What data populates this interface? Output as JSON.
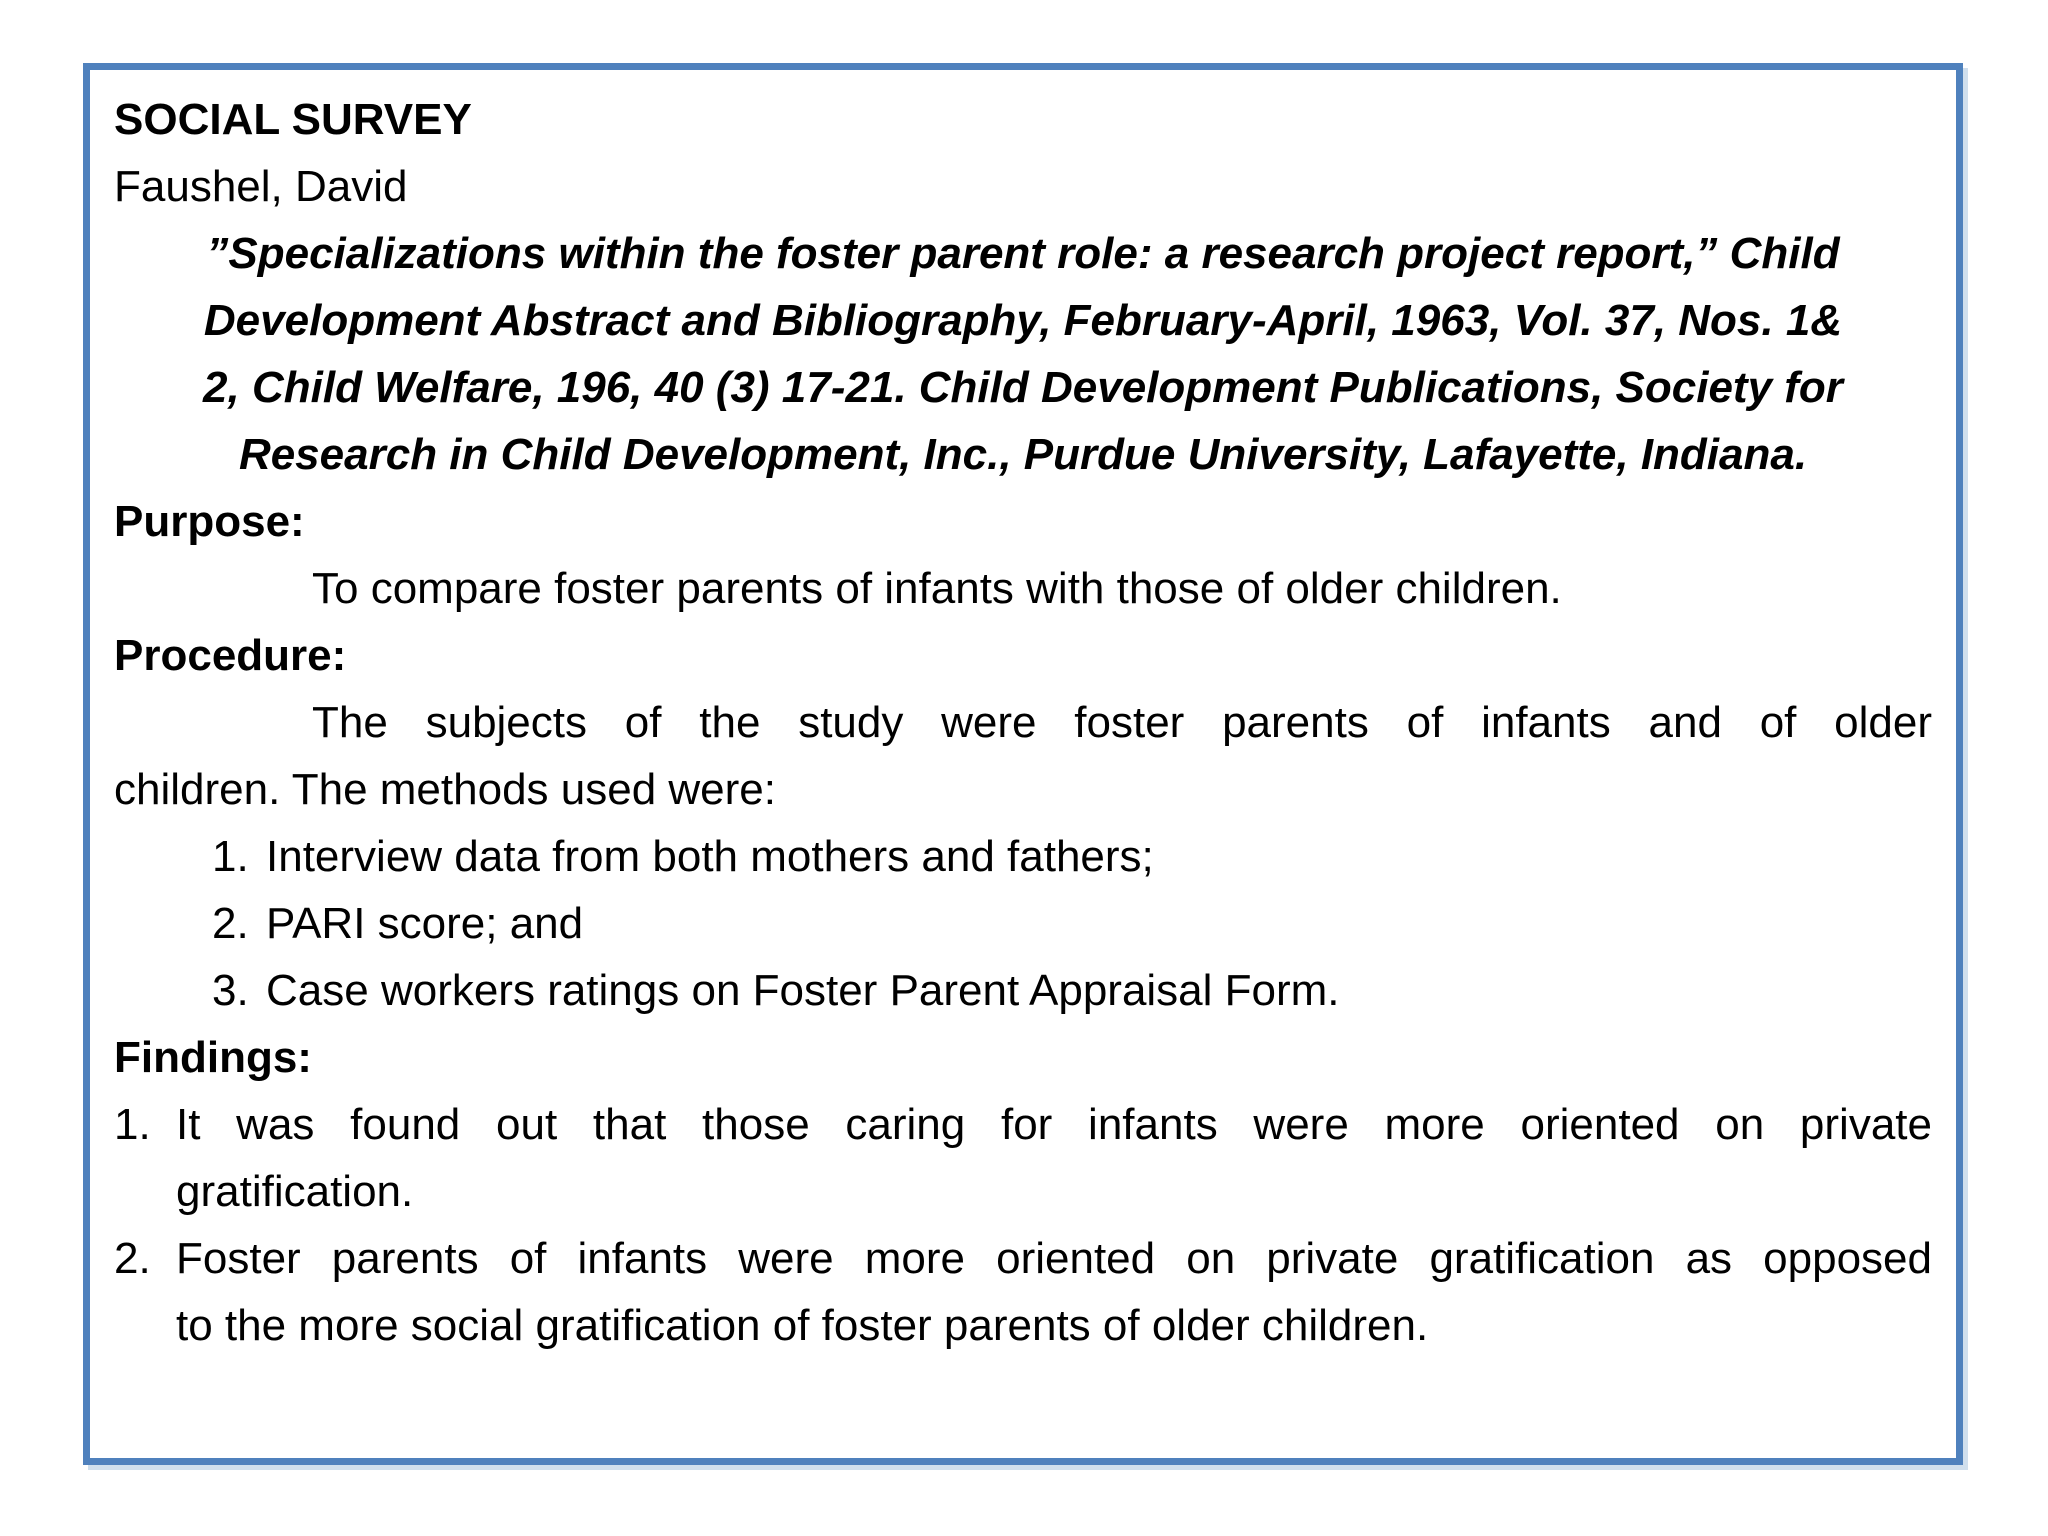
{
  "colors": {
    "border": "#4f81bd",
    "text": "#000000",
    "background": "#ffffff"
  },
  "doc": {
    "title": "SOCIAL SURVEY",
    "author": "Faushel, David",
    "citation": {
      "line1": "”Specializations within the foster parent role: a research project report,” Child",
      "line2": "Development Abstract and Bibliography, February-April, 1963, Vol. 37, Nos. 1&",
      "line3": "2, Child Welfare, 196, 40 (3) 17-21. Child Development Publications, Society for",
      "line4": "Research in Child Development, Inc., Purdue University, Lafayette, Indiana."
    },
    "purpose": {
      "heading": "Purpose:",
      "body": "To compare foster parents of infants with those of older children."
    },
    "procedure": {
      "heading": "Procedure:",
      "body_line1": "The subjects of the study were foster parents of infants and of older",
      "body_line2": "children. The methods used were:",
      "methods": [
        {
          "num": "1.",
          "text": "Interview data from both mothers and fathers;"
        },
        {
          "num": "2.",
          "text": "PARI score; and"
        },
        {
          "num": "3.",
          "text": "Case workers ratings on Foster Parent Appraisal Form."
        }
      ]
    },
    "findings": {
      "heading": "Findings:",
      "items": [
        {
          "num": "1.",
          "line1": "It was found out that those caring for infants were more oriented on private",
          "line2": "gratification."
        },
        {
          "num": "2.",
          "line1": "Foster parents of infants were more oriented on private gratification as opposed",
          "line2": "to the more social gratification of foster parents of older children."
        }
      ]
    }
  }
}
